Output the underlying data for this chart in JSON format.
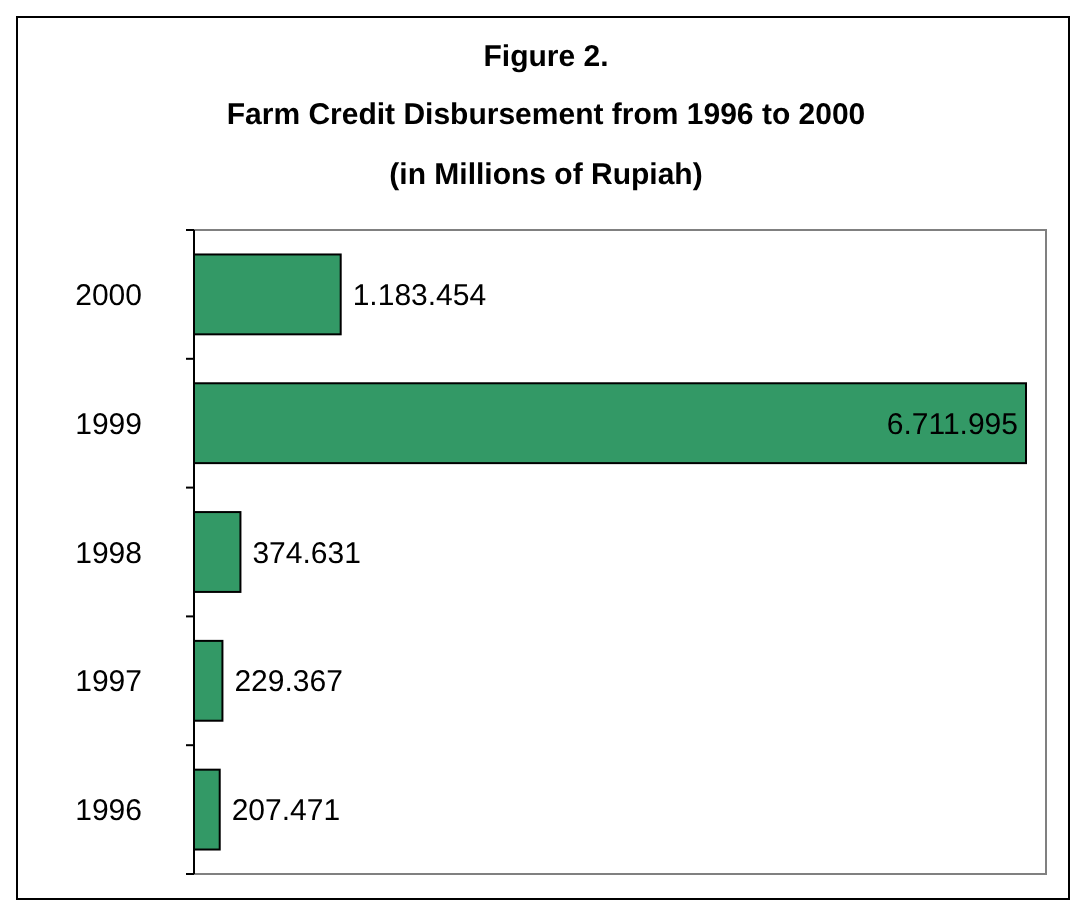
{
  "chart_data": {
    "type": "bar",
    "orientation": "horizontal",
    "title": "Figure 2.",
    "subtitle": "Farm Credit Disbursement from 1996 to 2000 (in Millions of Rupiah)",
    "categories": [
      "2000",
      "1999",
      "1998",
      "1997",
      "1996"
    ],
    "values": [
      1183454,
      6711995,
      374631,
      229367,
      207471
    ],
    "value_labels": [
      "1.183.454",
      "6.711.995",
      "374.631",
      "229.367",
      "207.471"
    ],
    "color": "#339966"
  }
}
